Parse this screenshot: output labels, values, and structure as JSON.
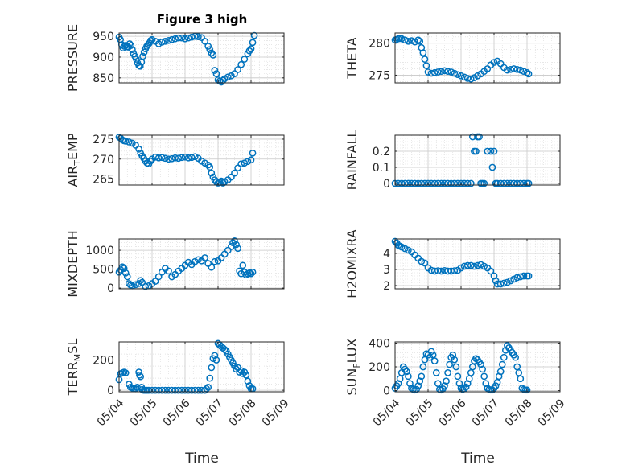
{
  "figure": {
    "title": "Figure 3 high",
    "xlabel": "Time",
    "x_ticks": [
      "05/04",
      "05/05",
      "05/06",
      "05/07",
      "05/08",
      "05/09"
    ],
    "marker_color": "#0072BD"
  },
  "chart_data": [
    {
      "type": "scatter",
      "ylabel": "PRESSURE",
      "ylim": [
        838,
        958
      ],
      "yticks": [
        850,
        900,
        950
      ],
      "grid": true,
      "grid_minor": true,
      "x": [
        4.0,
        4.04,
        4.08,
        4.12,
        4.16,
        4.2,
        4.24,
        4.28,
        4.32,
        4.36,
        4.4,
        4.44,
        4.48,
        4.52,
        4.56,
        4.6,
        4.64,
        4.68,
        4.72,
        4.76,
        4.8,
        4.84,
        4.88,
        4.92,
        4.96,
        5.0,
        5.1,
        5.2,
        5.3,
        5.4,
        5.5,
        5.6,
        5.7,
        5.8,
        5.9,
        6.0,
        6.1,
        6.2,
        6.3,
        6.4,
        6.5,
        6.6,
        6.7,
        6.75,
        6.8,
        6.85,
        6.9,
        6.95,
        7.0,
        7.05,
        7.1,
        7.15,
        7.2,
        7.3,
        7.4,
        7.5,
        7.6,
        7.7,
        7.8,
        7.9,
        7.95,
        8.0,
        8.05,
        8.1
      ],
      "y": [
        948,
        942,
        930,
        922,
        926,
        928,
        925,
        924,
        932,
        928,
        918,
        908,
        902,
        895,
        886,
        880,
        878,
        888,
        902,
        912,
        920,
        926,
        930,
        934,
        940,
        942,
        938,
        932,
        936,
        938,
        940,
        942,
        944,
        946,
        946,
        944,
        946,
        948,
        950,
        949,
        947,
        938,
        926,
        918,
        910,
        905,
        868,
        860,
        845,
        842,
        840,
        844,
        848,
        852,
        855,
        860,
        870,
        882,
        895,
        908,
        915,
        920,
        935,
        952
      ]
    },
    {
      "type": "scatter",
      "ylabel": "THETA",
      "ylim": [
        273.8,
        281.6
      ],
      "yticks": [
        275,
        280
      ],
      "grid": true,
      "grid_minor": true,
      "x": [
        4.0,
        4.05,
        4.1,
        4.15,
        4.2,
        4.3,
        4.4,
        4.5,
        4.6,
        4.7,
        4.75,
        4.8,
        4.85,
        4.9,
        4.95,
        5.0,
        5.1,
        5.2,
        5.3,
        5.4,
        5.5,
        5.6,
        5.7,
        5.8,
        5.9,
        6.0,
        6.1,
        6.2,
        6.3,
        6.4,
        6.5,
        6.6,
        6.7,
        6.8,
        6.9,
        7.0,
        7.1,
        7.2,
        7.3,
        7.4,
        7.5,
        7.6,
        7.7,
        7.8,
        7.9,
        8.0,
        8.05
      ],
      "y": [
        280.5,
        280.6,
        280.7,
        280.8,
        280.7,
        280.5,
        280.3,
        280.4,
        280.2,
        280.5,
        280.3,
        279.3,
        278.5,
        277.5,
        276.5,
        275.5,
        275.3,
        275.4,
        275.5,
        275.6,
        275.7,
        275.6,
        275.5,
        275.3,
        275.1,
        274.9,
        274.7,
        274.5,
        274.4,
        274.6,
        274.9,
        275.2,
        275.6,
        276.0,
        276.6,
        277.0,
        277.2,
        276.8,
        276.2,
        275.8,
        275.9,
        276.0,
        275.9,
        275.8,
        275.6,
        275.4,
        275.2
      ]
    },
    {
      "type": "scatter",
      "ylabel": "AIR_TEMP",
      "ylim": [
        263.5,
        276.0
      ],
      "yticks": [
        265,
        270,
        275
      ],
      "grid": true,
      "grid_minor": true,
      "x": [
        4.0,
        4.05,
        4.1,
        4.15,
        4.2,
        4.3,
        4.4,
        4.5,
        4.6,
        4.65,
        4.7,
        4.75,
        4.8,
        4.85,
        4.9,
        4.95,
        5.0,
        5.1,
        5.2,
        5.3,
        5.4,
        5.5,
        5.6,
        5.7,
        5.8,
        5.9,
        6.0,
        6.1,
        6.2,
        6.3,
        6.4,
        6.5,
        6.6,
        6.7,
        6.75,
        6.8,
        6.85,
        6.9,
        6.95,
        7.0,
        7.05,
        7.1,
        7.15,
        7.2,
        7.3,
        7.4,
        7.5,
        7.6,
        7.7,
        7.8,
        7.9,
        8.0,
        8.05
      ],
      "y": [
        275.5,
        275.2,
        274.8,
        274.6,
        274.5,
        274.3,
        274.0,
        273.5,
        272.5,
        271.5,
        270.8,
        270.2,
        269.5,
        269.0,
        268.8,
        269.5,
        270.0,
        270.5,
        270.3,
        270.4,
        270.2,
        270.0,
        270.1,
        270.3,
        270.2,
        270.4,
        270.5,
        270.3,
        270.4,
        270.6,
        270.2,
        269.5,
        269.0,
        268.5,
        268.0,
        266.5,
        265.5,
        264.8,
        264.3,
        264.0,
        264.2,
        264.5,
        264.0,
        264.3,
        264.8,
        265.5,
        266.5,
        267.8,
        268.8,
        269.0,
        269.4,
        269.8,
        271.5
      ]
    },
    {
      "type": "scatter",
      "ylabel": "RAINFALL",
      "ylim": [
        -0.01,
        0.3
      ],
      "yticks": [
        0,
        0.1,
        0.2
      ],
      "grid": true,
      "grid_minor": true,
      "x": [
        4.0,
        4.1,
        4.2,
        4.3,
        4.4,
        4.5,
        4.6,
        4.7,
        4.8,
        4.9,
        5.0,
        5.1,
        5.2,
        5.3,
        5.4,
        5.5,
        5.6,
        5.7,
        5.8,
        5.9,
        6.0,
        6.1,
        6.2,
        6.3,
        6.35,
        6.4,
        6.45,
        6.5,
        6.55,
        6.6,
        6.65,
        6.7,
        6.8,
        6.9,
        6.95,
        7.0,
        7.05,
        7.1,
        7.2,
        7.3,
        7.4,
        7.5,
        7.6,
        7.7,
        7.8,
        7.9,
        8.0,
        8.05
      ],
      "y": [
        0,
        0,
        0,
        0,
        0,
        0,
        0,
        0,
        0,
        0,
        0,
        0,
        0,
        0,
        0,
        0,
        0,
        0,
        0,
        0,
        0,
        0,
        0,
        0,
        0.29,
        0.2,
        0.2,
        0.29,
        0.29,
        0,
        0,
        0,
        0.2,
        0.2,
        0.1,
        0.2,
        0,
        0,
        0,
        0,
        0,
        0,
        0,
        0,
        0,
        0,
        0,
        0
      ]
    },
    {
      "type": "scatter",
      "ylabel": "MIXDEPTH",
      "ylim": [
        -20,
        1300
      ],
      "yticks": [
        0,
        500,
        1000
      ],
      "grid": true,
      "grid_minor": true,
      "x": [
        4.0,
        4.05,
        4.1,
        4.15,
        4.2,
        4.25,
        4.3,
        4.35,
        4.4,
        4.5,
        4.6,
        4.65,
        4.7,
        4.8,
        4.9,
        5.0,
        5.1,
        5.2,
        5.3,
        5.4,
        5.5,
        5.6,
        5.7,
        5.8,
        5.9,
        6.0,
        6.1,
        6.2,
        6.3,
        6.4,
        6.5,
        6.6,
        6.7,
        6.8,
        6.9,
        7.0,
        7.1,
        7.2,
        7.3,
        7.4,
        7.45,
        7.5,
        7.55,
        7.6,
        7.65,
        7.7,
        7.75,
        7.8,
        7.85,
        7.9,
        7.95,
        8.0,
        8.05
      ],
      "y": [
        420,
        480,
        560,
        520,
        400,
        300,
        120,
        80,
        60,
        90,
        120,
        200,
        150,
        40,
        60,
        120,
        180,
        300,
        420,
        520,
        450,
        300,
        360,
        450,
        520,
        600,
        680,
        620,
        700,
        750,
        720,
        800,
        650,
        550,
        700,
        720,
        800,
        900,
        1000,
        1100,
        1200,
        1250,
        1150,
        1050,
        450,
        380,
        600,
        420,
        350,
        380,
        400,
        380,
        420
      ]
    },
    {
      "type": "scatter",
      "ylabel": "H2OMIXRA",
      "ylim": [
        1.8,
        4.9
      ],
      "yticks": [
        2,
        3,
        4
      ],
      "grid": true,
      "grid_minor": true,
      "x": [
        4.0,
        4.05,
        4.1,
        4.15,
        4.2,
        4.3,
        4.4,
        4.5,
        4.6,
        4.7,
        4.8,
        4.9,
        5.0,
        5.1,
        5.2,
        5.3,
        5.4,
        5.5,
        5.6,
        5.7,
        5.8,
        5.9,
        6.0,
        6.1,
        6.2,
        6.3,
        6.4,
        6.5,
        6.6,
        6.7,
        6.8,
        6.9,
        7.0,
        7.05,
        7.1,
        7.2,
        7.3,
        7.4,
        7.5,
        7.6,
        7.7,
        7.8,
        7.9,
        8.0,
        8.05
      ],
      "y": [
        4.75,
        4.65,
        4.5,
        4.45,
        4.4,
        4.3,
        4.2,
        4.1,
        3.9,
        3.7,
        3.5,
        3.4,
        3.1,
        2.95,
        2.9,
        2.92,
        2.9,
        2.93,
        2.9,
        2.9,
        2.92,
        2.95,
        3.1,
        3.2,
        3.25,
        3.25,
        3.2,
        3.25,
        3.3,
        3.2,
        3.1,
        2.9,
        2.6,
        2.3,
        2.1,
        2.1,
        2.15,
        2.2,
        2.3,
        2.4,
        2.5,
        2.55,
        2.6,
        2.6,
        2.6
      ]
    },
    {
      "type": "scatter",
      "ylabel": "TERR_MSL",
      "ylim": [
        -10,
        320
      ],
      "yticks": [
        0,
        200
      ],
      "grid": true,
      "grid_minor": true,
      "x": [
        4.0,
        4.05,
        4.1,
        4.15,
        4.2,
        4.3,
        4.35,
        4.4,
        4.45,
        4.5,
        4.55,
        4.6,
        4.62,
        4.65,
        4.68,
        4.7,
        4.75,
        4.8,
        4.85,
        4.9,
        5.0,
        5.1,
        5.2,
        5.3,
        5.4,
        5.5,
        5.6,
        5.7,
        5.8,
        5.9,
        6.0,
        6.1,
        6.2,
        6.3,
        6.4,
        6.5,
        6.6,
        6.65,
        6.7,
        6.75,
        6.8,
        6.85,
        6.9,
        6.95,
        7.0,
        7.05,
        7.1,
        7.15,
        7.2,
        7.25,
        7.3,
        7.35,
        7.4,
        7.45,
        7.5,
        7.55,
        7.6,
        7.65,
        7.7,
        7.75,
        7.8,
        7.85,
        7.9,
        7.95,
        8.0,
        8.05
      ],
      "y": [
        70,
        110,
        115,
        120,
        115,
        40,
        20,
        15,
        10,
        10,
        20,
        120,
        100,
        90,
        20,
        5,
        0,
        0,
        0,
        0,
        0,
        0,
        0,
        0,
        0,
        0,
        0,
        0,
        0,
        0,
        0,
        0,
        0,
        0,
        0,
        0,
        0,
        10,
        20,
        80,
        150,
        210,
        230,
        200,
        310,
        300,
        290,
        280,
        270,
        260,
        240,
        220,
        200,
        180,
        160,
        140,
        150,
        120,
        130,
        110,
        120,
        100,
        60,
        30,
        10,
        10
      ]
    },
    {
      "type": "scatter",
      "ylabel": "SUN_FLUX",
      "ylim": [
        -10,
        410
      ],
      "yticks": [
        0,
        200,
        400
      ],
      "grid": true,
      "grid_minor": true,
      "x": [
        4.0,
        4.05,
        4.1,
        4.15,
        4.2,
        4.25,
        4.3,
        4.35,
        4.4,
        4.45,
        4.5,
        4.55,
        4.6,
        4.65,
        4.7,
        4.75,
        4.8,
        4.85,
        4.9,
        4.95,
        5.0,
        5.05,
        5.1,
        5.15,
        5.2,
        5.25,
        5.3,
        5.35,
        5.4,
        5.45,
        5.5,
        5.55,
        5.6,
        5.65,
        5.7,
        5.75,
        5.8,
        5.85,
        5.9,
        5.95,
        6.0,
        6.05,
        6.1,
        6.15,
        6.2,
        6.25,
        6.3,
        6.35,
        6.4,
        6.45,
        6.5,
        6.55,
        6.6,
        6.65,
        6.7,
        6.75,
        6.8,
        6.85,
        6.9,
        6.95,
        7.0,
        7.05,
        7.1,
        7.15,
        7.2,
        7.25,
        7.3,
        7.35,
        7.4,
        7.45,
        7.5,
        7.55,
        7.6,
        7.65,
        7.7,
        7.75,
        7.8,
        7.85,
        7.9,
        7.95,
        8.0
      ],
      "y": [
        20,
        40,
        60,
        100,
        150,
        200,
        180,
        160,
        120,
        60,
        20,
        10,
        5,
        10,
        40,
        80,
        120,
        200,
        260,
        310,
        300,
        280,
        330,
        300,
        250,
        150,
        60,
        10,
        5,
        15,
        40,
        80,
        150,
        220,
        280,
        300,
        260,
        200,
        120,
        60,
        20,
        10,
        15,
        30,
        60,
        100,
        150,
        200,
        250,
        270,
        260,
        240,
        220,
        180,
        120,
        60,
        20,
        10,
        5,
        5,
        20,
        40,
        70,
        120,
        160,
        220,
        280,
        340,
        380,
        360,
        340,
        320,
        300,
        280,
        200,
        150,
        100,
        20,
        10,
        5,
        5
      ]
    }
  ]
}
